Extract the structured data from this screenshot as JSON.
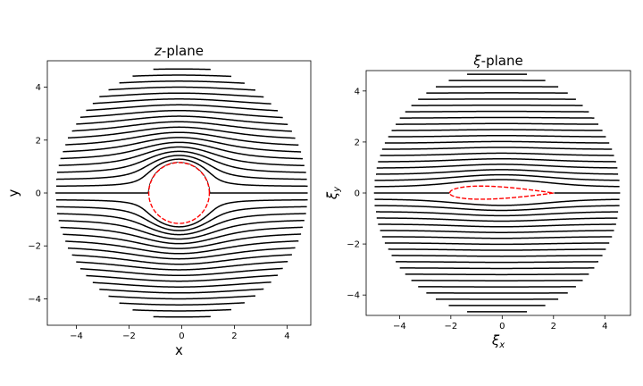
{
  "chart_data": [
    {
      "type": "line",
      "title_prefix": "z",
      "title_suffix": "-plane",
      "xlabel": "x",
      "ylabel": "y",
      "xlim": [
        -5.1,
        4.9
      ],
      "ylim": [
        -5.0,
        5.0
      ],
      "xticks": [
        -4,
        -2,
        0,
        2,
        4
      ],
      "yticks": [
        -4,
        -2,
        0,
        2,
        4
      ],
      "xtick_labels": [
        "−4",
        "−2",
        "0",
        "2",
        "4"
      ],
      "ytick_labels": [
        "−4",
        "−2",
        "0",
        "2",
        "4"
      ],
      "domain_radius": 4.8,
      "domain_center": [
        0,
        0
      ],
      "body": {
        "shape": "circle",
        "center": [
          -0.1,
          0.0
        ],
        "radius": 1.15,
        "color": "#ff0000"
      },
      "streamline_color": "#000000",
      "streamline_count": 39,
      "flow_model": "uniform flow around circular cylinder"
    },
    {
      "type": "line",
      "title_prefix": "ξ",
      "title_suffix": "-plane",
      "xlabel_base": "ξ",
      "xlabel_sub": "x",
      "ylabel_base": "ξ",
      "ylabel_sub": "y",
      "xlim": [
        -5.3,
        5.0
      ],
      "ylim": [
        -4.8,
        4.8
      ],
      "xticks": [
        -4,
        -2,
        0,
        2,
        4
      ],
      "yticks": [
        -4,
        -2,
        0,
        2,
        4
      ],
      "xtick_labels": [
        "−4",
        "−2",
        "0",
        "2",
        "4"
      ],
      "ytick_labels": [
        "−4",
        "−2",
        "0",
        "2",
        "4"
      ],
      "domain_radius": 4.8,
      "domain_center": [
        -0.2,
        0
      ],
      "body": {
        "shape": "joukowski airfoil",
        "leading_edge": [
          -2.05,
          0.0
        ],
        "trailing_edge": [
          2.0,
          0.0
        ],
        "max_thickness": 0.58,
        "color": "#ff0000"
      },
      "streamline_color": "#000000",
      "streamline_count": 39,
      "flow_model": "uniform flow around Joukowski airfoil"
    }
  ]
}
